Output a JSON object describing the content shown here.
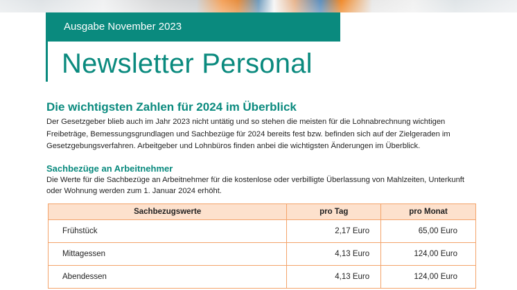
{
  "header": {
    "issue": "Ausgabe November 2023",
    "title": "Newsletter Personal"
  },
  "article": {
    "heading": "Die wichtigsten Zahlen für 2024 im Überblick",
    "intro": "Der Gesetzgeber blieb auch im Jahr 2023 nicht untätig und so stehen die meisten für die Lohnabrechnung wichtigen Freibeträge, Bemessungsgrundlagen und Sachbezüge für 2024 bereits fest bzw. befinden sich auf der Zielgeraden im Gesetzgebungsverfahren. Arbeitgeber und Lohnbüros finden anbei die wichtigsten Änderungen im Überblick."
  },
  "section": {
    "heading": "Sachbezüge an Arbeitnehmer",
    "text": "Die Werte für die Sachbezüge an Arbeitnehmer für die kostenlose oder verbilligte Überlassung von Mahlzeiten, Unterkunft oder Wohnung werden zum 1. Januar 2024 erhöht."
  },
  "table": {
    "headers": [
      "Sachbezugswerte",
      "pro Tag",
      "pro Monat"
    ],
    "rows": [
      [
        "Frühstück",
        "2,17 Euro",
        "65,00 Euro"
      ],
      [
        "Mittagessen",
        "4,13 Euro",
        "124,00 Euro"
      ],
      [
        "Abendessen",
        "4,13 Euro",
        "124,00 Euro"
      ]
    ]
  },
  "colors": {
    "brand_teal": "#0a8a7e",
    "table_border": "#f4a36a",
    "table_header_bg": "#fde1cd"
  }
}
